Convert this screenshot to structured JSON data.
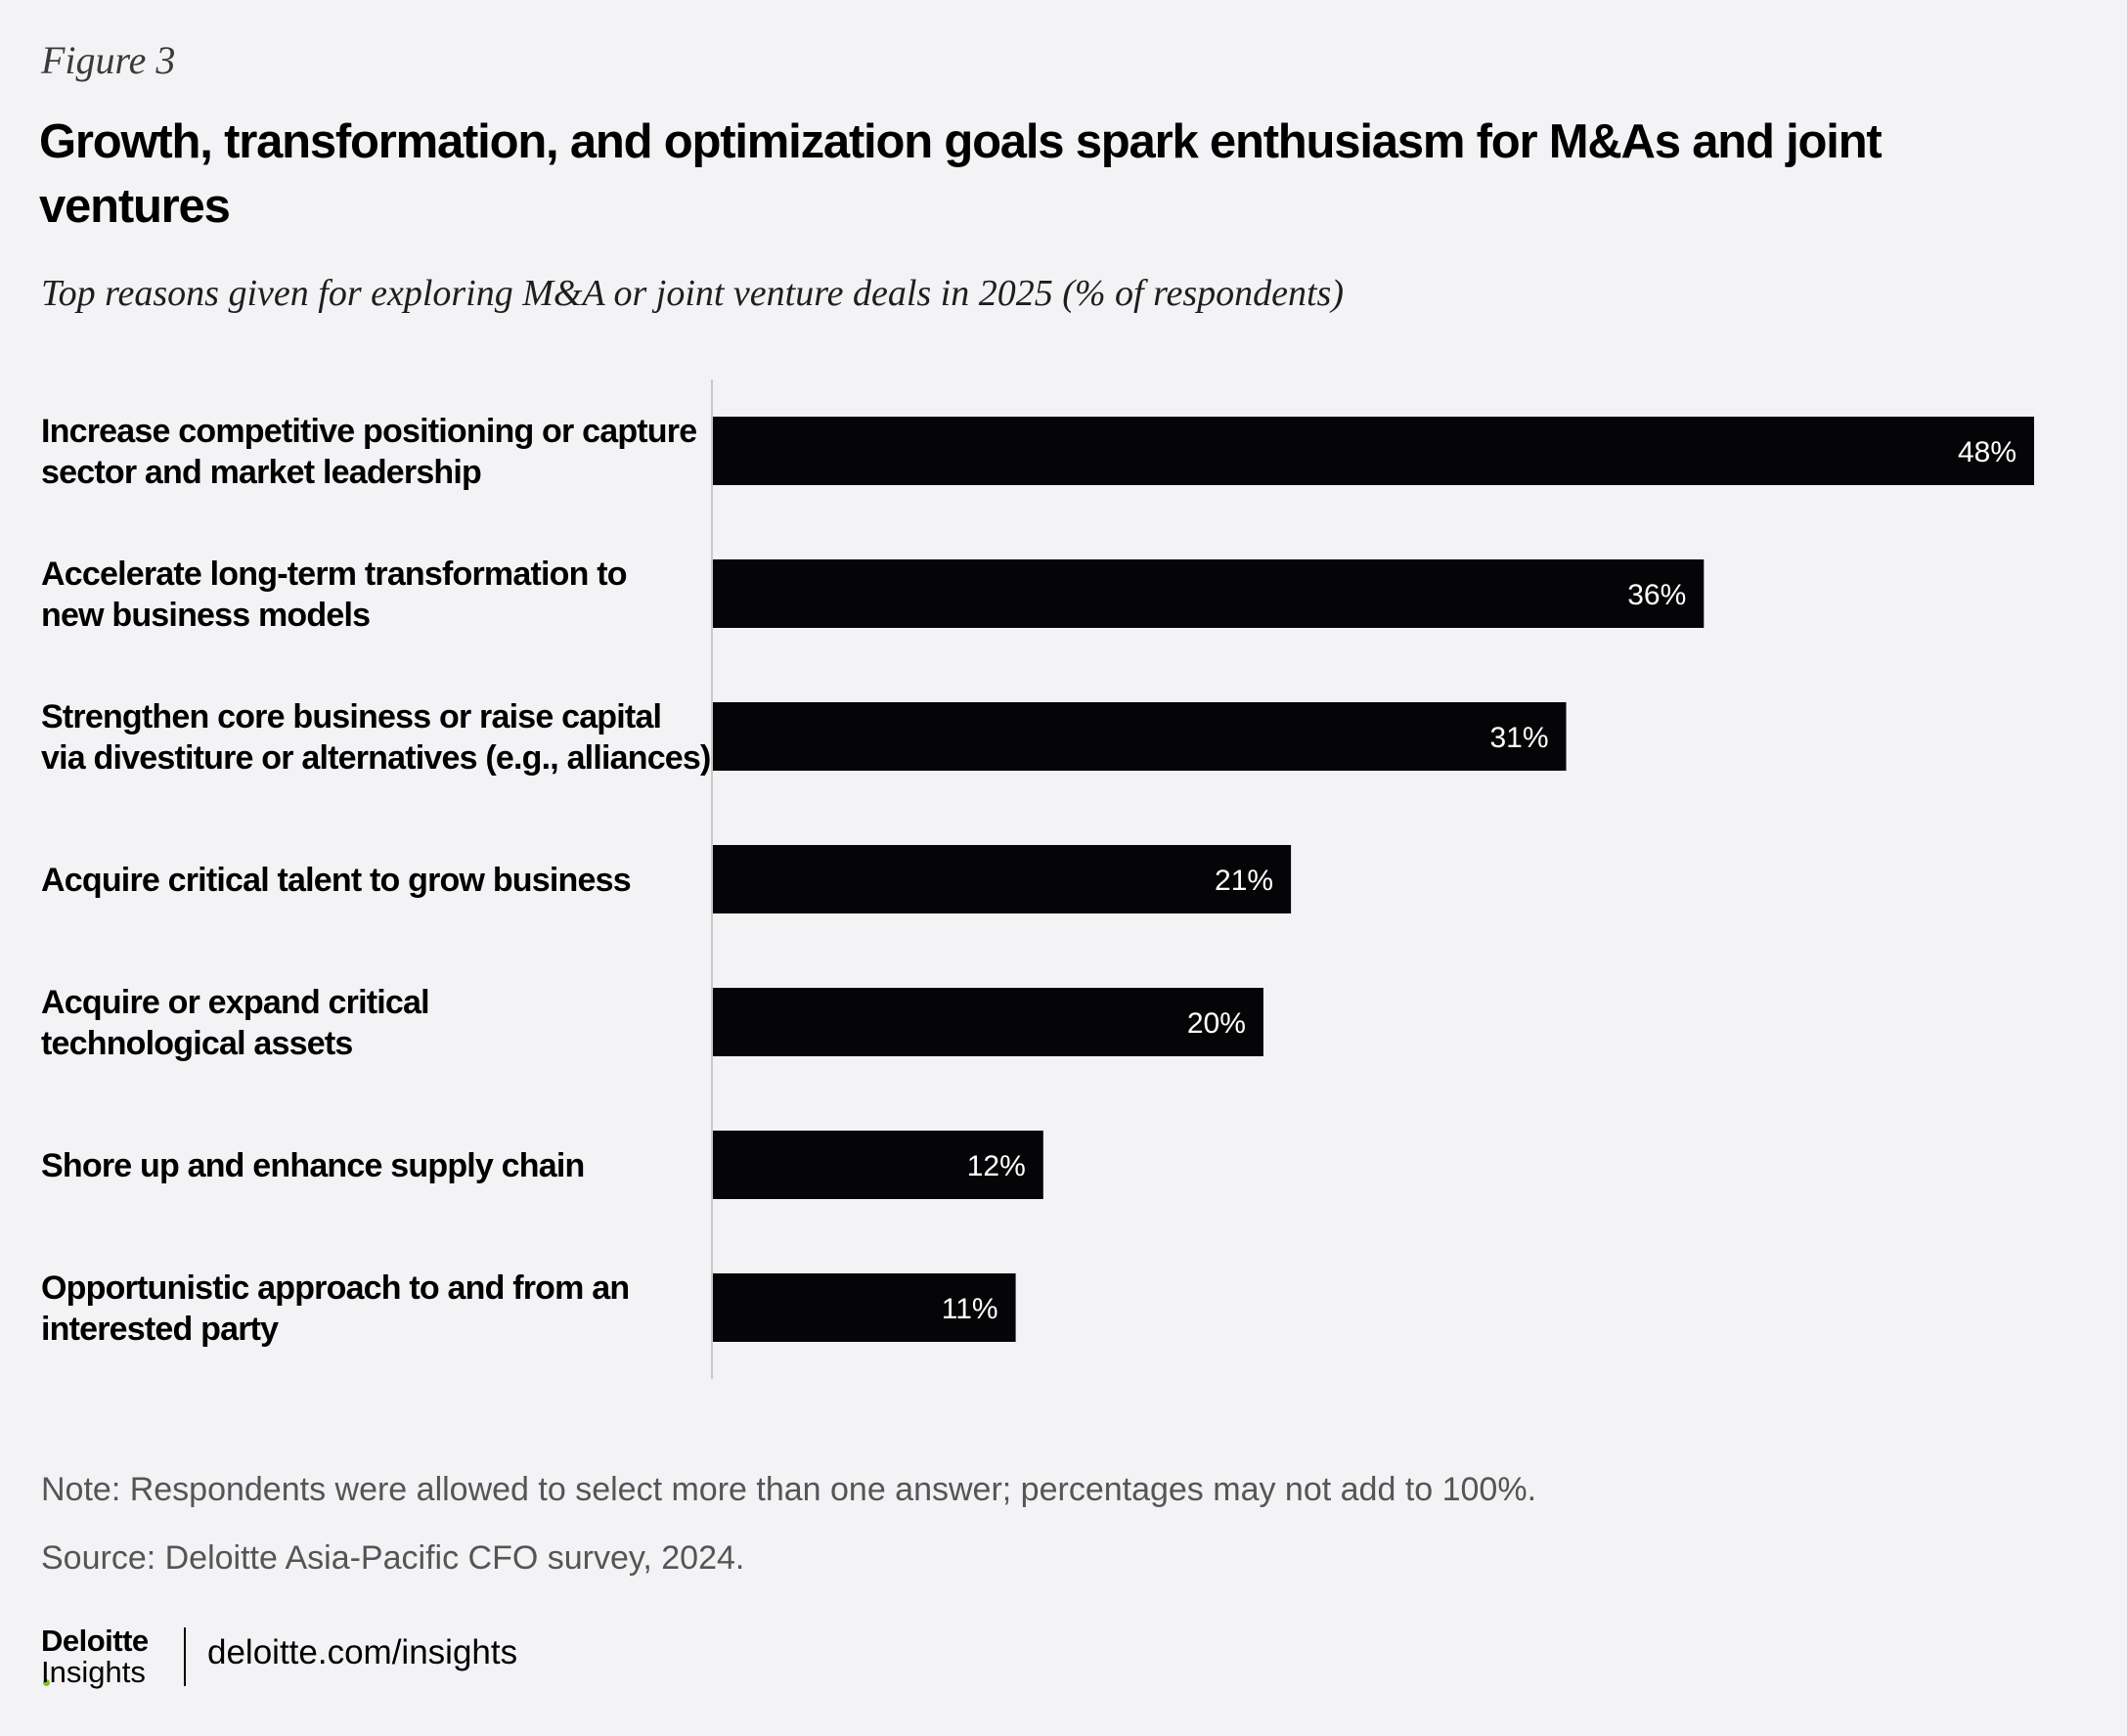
{
  "figure_label": "Figure 3",
  "title": "Growth, transformation, and optimization goals spark enthusiasm for M&As and joint ventures",
  "subtitle": "Top reasons given for exploring M&A or joint venture deals in 2025 (% of respondents)",
  "chart_data": {
    "type": "bar",
    "orientation": "horizontal",
    "categories": [
      [
        "Increase competitive positioning or capture",
        "sector and market leadership"
      ],
      [
        "Accelerate long-term transformation to",
        "new business models"
      ],
      [
        "Strengthen core business or raise capital",
        "via divestiture or alternatives (e.g., alliances)"
      ],
      [
        "Acquire critical talent to grow business"
      ],
      [
        "Acquire or expand critical",
        "technological assets"
      ],
      [
        "Shore up and enhance supply chain"
      ],
      [
        "Opportunistic approach to and from an",
        "interested party"
      ]
    ],
    "values": [
      48,
      36,
      31,
      21,
      20,
      12,
      11
    ],
    "value_labels": [
      "48%",
      "36%",
      "31%",
      "21%",
      "20%",
      "12%",
      "11%"
    ],
    "xlim": [
      0,
      48
    ],
    "grid": false,
    "bar_color": "#050507",
    "value_label_color": "#ffffff"
  },
  "note": "Note: Respondents were allowed to select more than one answer; percentages may not add to 100%.",
  "source": "Source: Deloitte Asia-Pacific CFO survey, 2024.",
  "footer": {
    "brand_name": "Deloitte",
    "brand_sub": "Insights",
    "brand_accent": "#86bc25",
    "url": "deloitte.com/insights"
  }
}
